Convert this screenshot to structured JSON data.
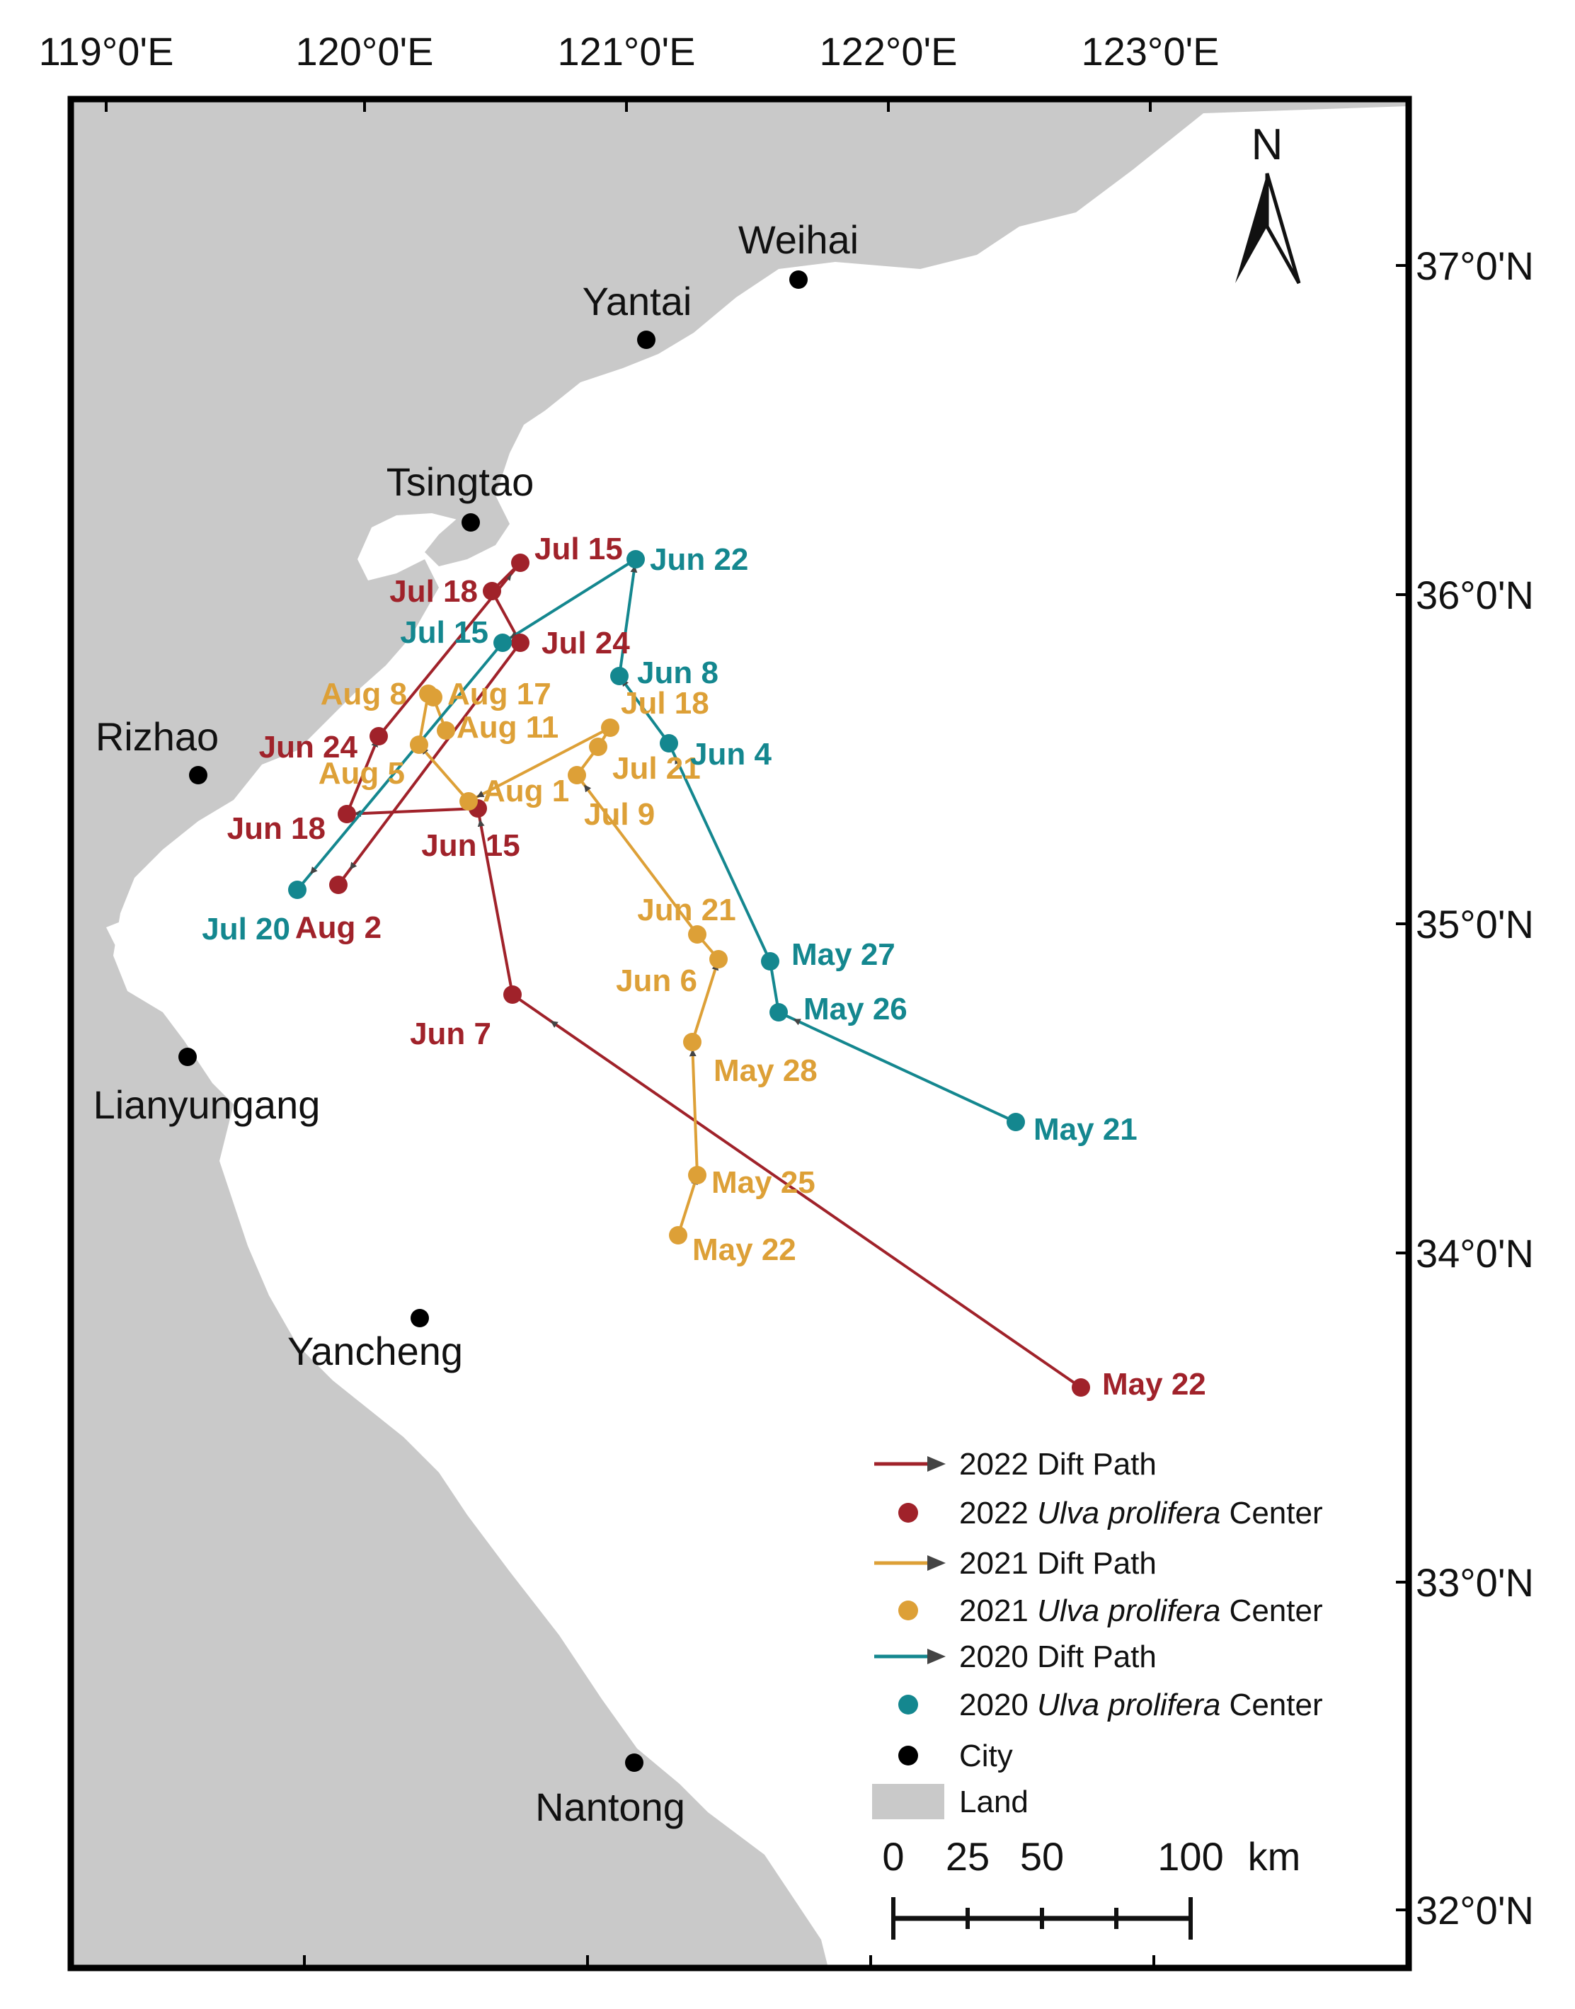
{
  "figure": {
    "longitude_ticks": [
      "119°0'E",
      "120°0'E",
      "121°0'E",
      "122°0'E",
      "123°0'E"
    ],
    "latitude_ticks": [
      "37°0'N",
      "36°0'N",
      "35°0'N",
      "34°0'N",
      "33°0'N",
      "32°0'N"
    ],
    "north_label": "N",
    "colors": {
      "y2022": "#a0222a",
      "y2021": "#dda037",
      "y2020": "#14878f",
      "land": "#c9c9c9",
      "city": "#000000"
    }
  },
  "cities": [
    {
      "name": "Weihai"
    },
    {
      "name": "Yantai"
    },
    {
      "name": "Tsingtao"
    },
    {
      "name": "Rizhao"
    },
    {
      "name": "Lianyungang"
    },
    {
      "name": "Yancheng"
    },
    {
      "name": "Nantong"
    }
  ],
  "paths": {
    "y2022": [
      "May 22",
      "Jun 7",
      "Jun 15",
      "Jun 18",
      "Jun 24",
      "Jul 15",
      "Jul 18",
      "Jul 24",
      "Aug 2"
    ],
    "y2021": [
      "May 22",
      "May 25",
      "May 28",
      "Jun 6",
      "Jun 21",
      "Jul 9",
      "Jul 21",
      "Jul 18",
      "Aug 1",
      "Aug 5",
      "Aug 8",
      "Aug 17",
      "Aug 11"
    ],
    "y2020": [
      "May 21",
      "May 26",
      "May 27",
      "Jun 4",
      "Jun 8",
      "Jun 22",
      "Jul 15",
      "Jul 20"
    ]
  },
  "legend": {
    "items": [
      {
        "year": "2022",
        "suffix": " Dift Path",
        "italic": "",
        "kind": "line",
        "color": "#a0222a"
      },
      {
        "year": "2022 ",
        "suffix": " Center",
        "italic": "Ulva prolifera",
        "kind": "dot",
        "color": "#a0222a"
      },
      {
        "year": "2021",
        "suffix": " Dift Path",
        "italic": "",
        "kind": "line",
        "color": "#dda037"
      },
      {
        "year": "2021 ",
        "suffix": " Center",
        "italic": "Ulva prolifera",
        "kind": "dot",
        "color": "#dda037"
      },
      {
        "year": "2020",
        "suffix": " Dift Path",
        "italic": "",
        "kind": "line",
        "color": "#14878f"
      },
      {
        "year": "2020 ",
        "suffix": " Center",
        "italic": "Ulva prolifera",
        "kind": "dot",
        "color": "#14878f"
      },
      {
        "year": "City",
        "suffix": "",
        "italic": "",
        "kind": "city",
        "color": "#000000"
      },
      {
        "year": "Land",
        "suffix": "",
        "italic": "",
        "kind": "land",
        "color": "#c9c9c9"
      }
    ]
  },
  "scale_bar": {
    "labels": [
      "0",
      "25",
      "50",
      "100"
    ],
    "unit": "km"
  }
}
